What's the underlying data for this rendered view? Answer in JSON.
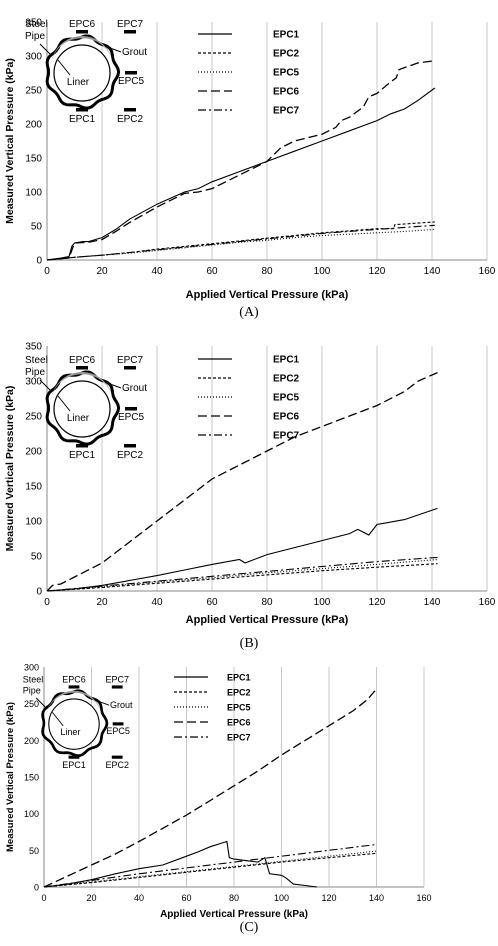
{
  "chart_data": [
    {
      "type": "line",
      "caption": "(A)",
      "xlabel": "Applied Vertical Pressure (kPa)",
      "ylabel": "Measured Vertical Pressure (kPa)",
      "xlim": [
        0,
        160
      ],
      "ylim": [
        0,
        350
      ],
      "xticks": [
        0,
        20,
        40,
        60,
        80,
        100,
        120,
        140,
        160
      ],
      "yticks": [
        0,
        50,
        100,
        150,
        200,
        250,
        300,
        350
      ],
      "grid": "vertical",
      "legend_position": "top-right",
      "inset_labels": {
        "steel_pipe": "Steel Pipe",
        "grout": "Grout",
        "liner": "Liner",
        "epc1": "EPC1",
        "epc2": "EPC2",
        "epc5": "EPC5",
        "epc6": "EPC6",
        "epc7": "EPC7"
      },
      "series": [
        {
          "name": "EPC1",
          "dash": "",
          "x": [
            0,
            5,
            8,
            9,
            10,
            13,
            15,
            20,
            25,
            30,
            40,
            50,
            55,
            60,
            70,
            80,
            90,
            100,
            110,
            120,
            125,
            130,
            135,
            141
          ],
          "y": [
            0,
            3,
            5,
            20,
            25,
            27,
            27,
            33,
            45,
            60,
            82,
            100,
            105,
            115,
            130,
            145,
            160,
            175,
            190,
            205,
            215,
            222,
            235,
            253
          ]
        },
        {
          "name": "EPC2",
          "dash": "3,2",
          "x": [
            0,
            10,
            20,
            30,
            40,
            50,
            60,
            70,
            80,
            90,
            100,
            110,
            120,
            126,
            126.5,
            130,
            141
          ],
          "y": [
            0,
            4,
            7,
            11,
            16,
            20,
            24,
            28,
            32,
            36,
            40,
            43,
            46,
            46,
            52,
            53,
            56
          ]
        },
        {
          "name": "EPC5",
          "dash": "1,2",
          "x": [
            0,
            10,
            20,
            30,
            40,
            50,
            60,
            70,
            80,
            90,
            100,
            110,
            120,
            130,
            141
          ],
          "y": [
            0,
            4,
            7,
            10,
            14,
            18,
            22,
            26,
            29,
            33,
            36,
            38,
            40,
            42,
            45
          ]
        },
        {
          "name": "EPC6",
          "dash": "9,4",
          "x": [
            0,
            8,
            10,
            15,
            20,
            25,
            30,
            40,
            50,
            55,
            60,
            65,
            70,
            75,
            80,
            85,
            90,
            100,
            105,
            107,
            110,
            115,
            117,
            120,
            125,
            127,
            128,
            135,
            141
          ],
          "y": [
            0,
            3,
            25,
            26,
            30,
            42,
            55,
            78,
            98,
            100,
            105,
            115,
            125,
            135,
            145,
            165,
            175,
            185,
            195,
            205,
            210,
            225,
            240,
            245,
            262,
            268,
            280,
            290,
            293
          ]
        },
        {
          "name": "EPC7",
          "dash": "8,3,2,3",
          "x": [
            0,
            10,
            20,
            30,
            40,
            50,
            60,
            70,
            80,
            90,
            100,
            110,
            120,
            130,
            141
          ],
          "y": [
            0,
            4,
            7,
            11,
            15,
            19,
            23,
            27,
            31,
            35,
            39,
            42,
            45,
            48,
            51
          ]
        }
      ]
    },
    {
      "type": "line",
      "caption": "(B)",
      "xlabel": "Applied Vertical Pressure (kPa)",
      "ylabel": "Measured Vertical Pressure (kPa)",
      "xlim": [
        0,
        160
      ],
      "ylim": [
        0,
        350
      ],
      "xticks": [
        0,
        20,
        40,
        60,
        80,
        100,
        120,
        140,
        160
      ],
      "yticks": [
        0,
        50,
        100,
        150,
        200,
        250,
        300,
        350
      ],
      "grid": "vertical",
      "legend_position": "top-right",
      "inset_labels": {
        "steel_pipe": "Steel Pipe",
        "grout": "Grout",
        "liner": "Liner",
        "epc1": "EPC1",
        "epc2": "EPC2",
        "epc5": "EPC5",
        "epc6": "EPC6",
        "epc7": "EPC7"
      },
      "series": [
        {
          "name": "EPC1",
          "dash": "",
          "x": [
            0,
            10,
            20,
            30,
            40,
            50,
            60,
            70,
            72,
            80,
            90,
            100,
            110,
            113,
            117,
            120,
            130,
            142
          ],
          "y": [
            0,
            3,
            8,
            15,
            22,
            30,
            38,
            45,
            40,
            52,
            62,
            72,
            82,
            88,
            80,
            95,
            102,
            118
          ]
        },
        {
          "name": "EPC2",
          "dash": "3,2",
          "x": [
            0,
            20,
            40,
            60,
            80,
            100,
            120,
            142
          ],
          "y": [
            0,
            5,
            11,
            17,
            23,
            29,
            34,
            39
          ]
        },
        {
          "name": "EPC5",
          "dash": "1,2",
          "x": [
            0,
            20,
            40,
            60,
            80,
            100,
            120,
            142
          ],
          "y": [
            0,
            6,
            13,
            19,
            26,
            32,
            38,
            45
          ]
        },
        {
          "name": "EPC6",
          "dash": "9,4",
          "x": [
            0,
            2,
            5,
            10,
            20,
            30,
            40,
            50,
            60,
            70,
            80,
            90,
            100,
            110,
            120,
            130,
            135,
            142
          ],
          "y": [
            0,
            8,
            10,
            20,
            40,
            70,
            100,
            130,
            160,
            180,
            200,
            220,
            235,
            250,
            265,
            285,
            300,
            312
          ]
        },
        {
          "name": "EPC7",
          "dash": "8,3,2,3",
          "x": [
            0,
            20,
            40,
            60,
            80,
            100,
            120,
            142
          ],
          "y": [
            0,
            7,
            14,
            21,
            28,
            35,
            42,
            48
          ]
        }
      ]
    },
    {
      "type": "line",
      "caption": "(C)",
      "xlabel": "Applied Vertical Pressure (kPa)",
      "ylabel": "Measured Vertical Pressure (kPa)",
      "xlim": [
        0,
        160
      ],
      "ylim": [
        0,
        300
      ],
      "xticks": [
        0,
        20,
        40,
        60,
        80,
        100,
        120,
        140,
        160
      ],
      "yticks": [
        0,
        50,
        100,
        150,
        200,
        250,
        300
      ],
      "grid": "vertical",
      "legend_position": "top-center",
      "inset_labels": {
        "steel_pipe": "Steel Pipe",
        "grout": "Grout",
        "liner": "Liner",
        "epc1": "EPC1",
        "epc2": "EPC2",
        "epc5": "EPC5",
        "epc6": "EPC6",
        "epc7": "EPC7"
      },
      "series": [
        {
          "name": "EPC1",
          "dash": "",
          "x": [
            0,
            10,
            20,
            30,
            40,
            50,
            60,
            65,
            70,
            75,
            77,
            78,
            80,
            85,
            90,
            93,
            95,
            100,
            102,
            105,
            110,
            115
          ],
          "y": [
            0,
            4,
            10,
            18,
            25,
            30,
            42,
            48,
            55,
            60,
            62,
            40,
            38,
            36,
            34,
            40,
            18,
            16,
            12,
            4,
            2,
            0
          ]
        },
        {
          "name": "EPC2",
          "dash": "3,2",
          "x": [
            0,
            20,
            40,
            60,
            80,
            100,
            120,
            140
          ],
          "y": [
            0,
            6,
            13,
            20,
            27,
            34,
            40,
            46
          ]
        },
        {
          "name": "EPC5",
          "dash": "1,2",
          "x": [
            0,
            20,
            40,
            60,
            80,
            100,
            120,
            140
          ],
          "y": [
            0,
            7,
            14,
            21,
            28,
            35,
            42,
            49
          ]
        },
        {
          "name": "EPC6",
          "dash": "9,4",
          "x": [
            0,
            10,
            20,
            30,
            40,
            50,
            60,
            70,
            80,
            90,
            100,
            110,
            120,
            130,
            136,
            140
          ],
          "y": [
            0,
            15,
            30,
            45,
            62,
            80,
            98,
            118,
            138,
            158,
            180,
            200,
            220,
            240,
            255,
            270
          ]
        },
        {
          "name": "EPC7",
          "dash": "8,3,2,3",
          "x": [
            0,
            20,
            40,
            60,
            80,
            100,
            120,
            140
          ],
          "y": [
            0,
            9,
            18,
            26,
            34,
            42,
            50,
            58
          ]
        }
      ]
    }
  ]
}
